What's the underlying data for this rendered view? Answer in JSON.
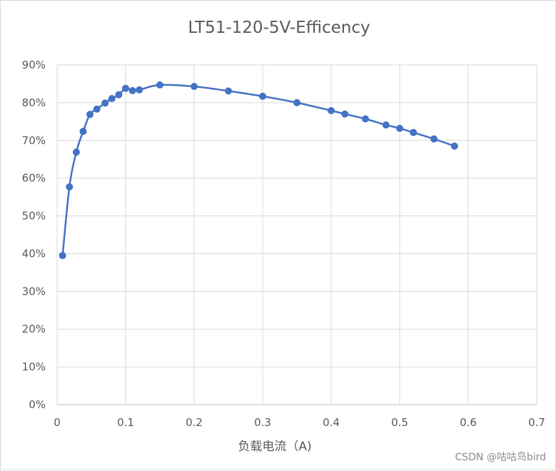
{
  "chart_data": {
    "type": "scatter",
    "title": "LT51-120-5V-Efficency",
    "xlabel": "负载电流（A)",
    "ylabel": "",
    "xlim": [
      0,
      0.7
    ],
    "ylim": [
      0,
      0.9
    ],
    "x_ticks": [
      "0",
      "0.1",
      "0.2",
      "0.3",
      "0.4",
      "0.5",
      "0.6",
      "0.7"
    ],
    "y_ticks": [
      "0%",
      "10%",
      "20%",
      "30%",
      "40%",
      "50%",
      "60%",
      "70%",
      "80%",
      "90%"
    ],
    "grid": true,
    "legend": "none",
    "series": [
      {
        "color": "#4472c4",
        "marker": "circle",
        "x": [
          0.008,
          0.018,
          0.028,
          0.038,
          0.048,
          0.058,
          0.07,
          0.08,
          0.09,
          0.1,
          0.11,
          0.12,
          0.15,
          0.2,
          0.25,
          0.3,
          0.35,
          0.4,
          0.42,
          0.45,
          0.48,
          0.5,
          0.52,
          0.55,
          0.58
        ],
        "y": [
          0.395,
          0.577,
          0.669,
          0.724,
          0.769,
          0.783,
          0.799,
          0.811,
          0.821,
          0.838,
          0.832,
          0.834,
          0.847,
          0.843,
          0.831,
          0.817,
          0.8,
          0.779,
          0.77,
          0.757,
          0.741,
          0.732,
          0.721,
          0.704,
          0.685
        ]
      }
    ]
  },
  "watermark": "CSDN @咕咕鸟bird"
}
